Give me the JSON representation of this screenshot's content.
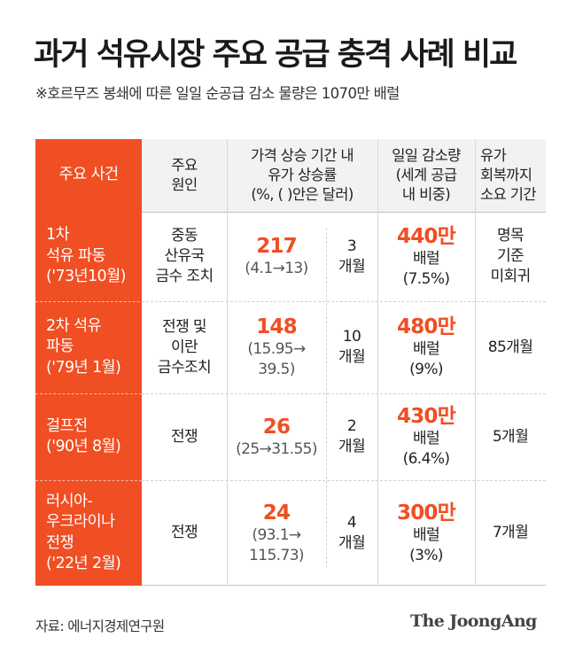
{
  "title": "과거 석유시장 주요 공급 충격 사례 비교",
  "subtitle": "※호르무즈 봉쇄에 따른 일일 순공급 감소 물량은 1070만 배럴",
  "headers": {
    "event": "주요 사건",
    "cause": [
      "주요",
      "원인"
    ],
    "price": [
      "가격 상승 기간 내",
      "유가 상승률",
      "(%, ( )안은 달러)"
    ],
    "supply": [
      "일일 감소량",
      "(세계 공급",
      "내 비중)"
    ],
    "recovery": [
      "유가",
      "회복까지",
      "소요 기간"
    ]
  },
  "rows": [
    {
      "event": [
        "1차",
        "석유 파동",
        "('73년10월)"
      ],
      "cause": [
        "중동",
        "산유국",
        "금수 조치"
      ],
      "price_pct": "217",
      "price_detail": [
        "(4.1→13)"
      ],
      "duration": [
        "3",
        "개월"
      ],
      "supply_amount": "440만",
      "supply_unit": "배럴",
      "supply_share": "(7.5%)",
      "recovery": [
        "명목",
        "기준",
        "미회귀"
      ]
    },
    {
      "event": [
        "2차 석유",
        "파동",
        "('79년 1월)"
      ],
      "cause": [
        "전쟁 및",
        "이란",
        "금수조치"
      ],
      "price_pct": "148",
      "price_detail": [
        "(15.95→",
        "39.5)"
      ],
      "duration": [
        "10",
        "개월"
      ],
      "supply_amount": "480만",
      "supply_unit": "배럴",
      "supply_share": "(9%)",
      "recovery": [
        "85개월"
      ]
    },
    {
      "event": [
        "걸프전",
        "('90년 8월)"
      ],
      "cause": [
        "전쟁"
      ],
      "price_pct": "26",
      "price_detail": [
        "(25→31.55)"
      ],
      "duration": [
        "2",
        "개월"
      ],
      "supply_amount": "430만",
      "supply_unit": "배럴",
      "supply_share": "(6.4%)",
      "recovery": [
        "5개월"
      ]
    },
    {
      "event": [
        "러시아-",
        "우크라이나",
        "전쟁",
        "('22년 2월)"
      ],
      "cause": [
        "전쟁"
      ],
      "price_pct": "24",
      "price_detail": [
        "(93.1→",
        "115.73)"
      ],
      "duration": [
        "4",
        "개월"
      ],
      "supply_amount": "300만",
      "supply_unit": "배럴",
      "supply_share": "(3%)",
      "recovery": [
        "7개월"
      ]
    }
  ],
  "source": "자료: 에너지경제연구원",
  "logo": "The JoongAng"
}
